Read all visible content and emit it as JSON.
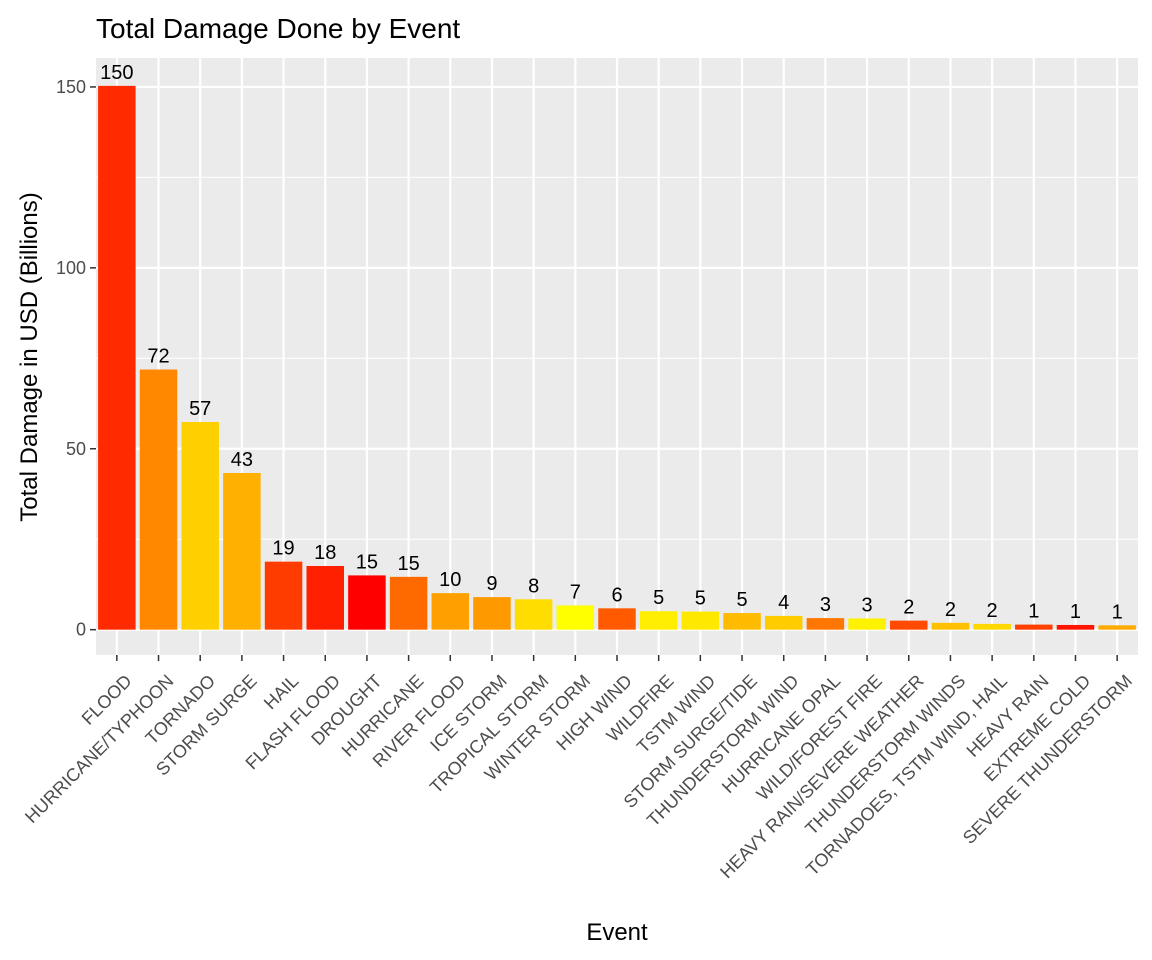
{
  "chart_data": {
    "type": "bar",
    "title": "Total Damage Done by Event",
    "xlabel": "Event",
    "ylabel": "Total Damage in USD (Billions)",
    "ylim": [
      -7,
      158
    ],
    "yticks": [
      0,
      50,
      100,
      150
    ],
    "grid": true,
    "legend": "none",
    "panel_background": "#ebebeb",
    "gridline_color": "#ffffff",
    "categories": [
      "FLOOD",
      "HURRICANE/TYPHOON",
      "TORNADO",
      "STORM SURGE",
      "HAIL",
      "FLASH FLOOD",
      "DROUGHT",
      "HURRICANE",
      "RIVER FLOOD",
      "ICE STORM",
      "TROPICAL STORM",
      "WINTER STORM",
      "HIGH WIND",
      "WILDFIRE",
      "TSTM WIND",
      "STORM SURGE/TIDE",
      "THUNDERSTORM WIND",
      "HURRICANE OPAL",
      "WILD/FOREST FIRE",
      "HEAVY RAIN/SEVERE WEATHER",
      "THUNDERSTORM WINDS",
      "TORNADOES, TSTM WIND, HAIL",
      "HEAVY RAIN",
      "EXTREME COLD",
      "SEVERE THUNDERSTORM"
    ],
    "values": [
      150.3,
      71.9,
      57.4,
      43.3,
      18.8,
      17.6,
      15.0,
      14.6,
      10.1,
      9.0,
      8.4,
      6.7,
      5.9,
      5.1,
      5.0,
      4.6,
      3.8,
      3.2,
      3.1,
      2.5,
      1.9,
      1.6,
      1.4,
      1.3,
      1.2
    ],
    "labels": [
      "150",
      "72",
      "57",
      "43",
      "19",
      "18",
      "15",
      "15",
      "10",
      "9",
      "8",
      "7",
      "6",
      "5",
      "5",
      "5",
      "4",
      "3",
      "3",
      "2",
      "2",
      "2",
      "1",
      "1",
      "1"
    ],
    "colors": [
      "#ff2a00",
      "#ff8800",
      "#ffd000",
      "#ffb000",
      "#ff3c00",
      "#ff2000",
      "#ff0000",
      "#ff6a00",
      "#ffa000",
      "#ff9900",
      "#ffdd00",
      "#ffff00",
      "#ff5a00",
      "#ffee00",
      "#ffe800",
      "#ffbb00",
      "#ffcc00",
      "#ff7700",
      "#fff200",
      "#ff4a00",
      "#ffc000",
      "#ffd800",
      "#ff4000",
      "#ff1400",
      "#ffaa00"
    ]
  }
}
